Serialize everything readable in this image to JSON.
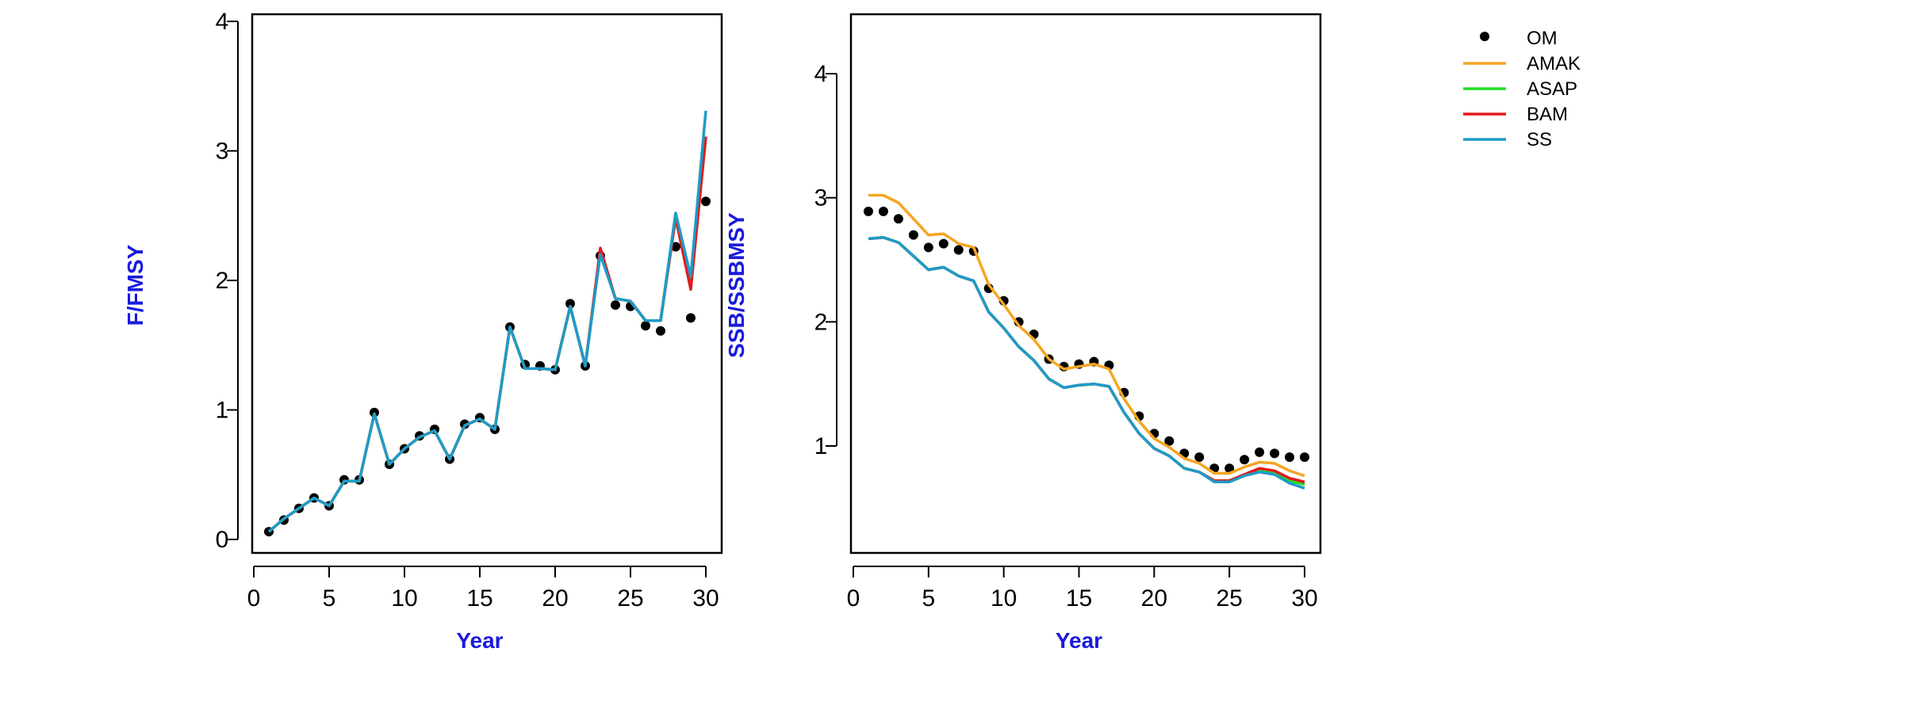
{
  "colors": {
    "OM": "#000000",
    "AMAK": "#F5A623",
    "ASAP": "#22DD22",
    "BAM": "#E31A1C",
    "SS": "#1E9BC8",
    "axis_title": "#1A1ADD"
  },
  "legend": {
    "placement": "top-right",
    "items": [
      {
        "name": "OM",
        "style": "points"
      },
      {
        "name": "AMAK",
        "style": "line"
      },
      {
        "name": "ASAP",
        "style": "line"
      },
      {
        "name": "BAM",
        "style": "line"
      },
      {
        "name": "SS",
        "style": "line"
      }
    ]
  },
  "chart_data": [
    {
      "type": "line",
      "title": "",
      "xlabel": "Year",
      "ylabel": "F/FMSY",
      "xlim": [
        0,
        30
      ],
      "ylim": [
        0,
        4
      ],
      "xticks": [
        0,
        5,
        10,
        15,
        20,
        25,
        30
      ],
      "yticks": [
        0,
        1,
        2,
        3,
        4
      ],
      "grid": false,
      "x": [
        1,
        2,
        3,
        4,
        5,
        6,
        7,
        8,
        9,
        10,
        11,
        12,
        13,
        14,
        15,
        16,
        17,
        18,
        19,
        20,
        21,
        22,
        23,
        24,
        25,
        26,
        27,
        28,
        29,
        30
      ],
      "series": [
        {
          "name": "OM",
          "style": "points",
          "values": [
            0.06,
            0.15,
            0.24,
            0.32,
            0.26,
            0.46,
            0.46,
            0.98,
            0.58,
            0.7,
            0.8,
            0.85,
            0.62,
            0.89,
            0.94,
            0.85,
            1.64,
            1.35,
            1.34,
            1.31,
            1.82,
            1.34,
            2.19,
            1.81,
            1.8,
            1.65,
            1.61,
            2.26,
            1.71,
            2.61
          ]
        },
        {
          "name": "AMAK",
          "style": "line",
          "values": [
            0.06,
            0.16,
            0.24,
            0.32,
            0.26,
            0.45,
            0.45,
            0.97,
            0.58,
            0.7,
            0.79,
            0.84,
            0.62,
            0.88,
            0.93,
            0.85,
            1.64,
            1.32,
            1.32,
            1.31,
            1.8,
            1.34,
            2.22,
            1.86,
            1.84,
            1.69,
            1.69,
            2.52,
            1.97,
            3.11
          ]
        },
        {
          "name": "ASAP",
          "style": "line",
          "values": [
            0.06,
            0.16,
            0.24,
            0.32,
            0.26,
            0.45,
            0.45,
            0.97,
            0.58,
            0.7,
            0.79,
            0.84,
            0.62,
            0.88,
            0.93,
            0.85,
            1.64,
            1.32,
            1.32,
            1.31,
            1.8,
            1.34,
            2.22,
            1.86,
            1.84,
            1.69,
            1.69,
            2.52,
            1.97,
            3.11
          ]
        },
        {
          "name": "BAM",
          "style": "line",
          "values": [
            0.06,
            0.16,
            0.24,
            0.32,
            0.26,
            0.45,
            0.45,
            0.97,
            0.58,
            0.7,
            0.79,
            0.84,
            0.62,
            0.88,
            0.93,
            0.85,
            1.64,
            1.32,
            1.32,
            1.31,
            1.8,
            1.34,
            2.25,
            1.86,
            1.84,
            1.69,
            1.69,
            2.48,
            1.93,
            3.11
          ]
        },
        {
          "name": "SS",
          "style": "line",
          "values": [
            0.06,
            0.16,
            0.24,
            0.32,
            0.26,
            0.45,
            0.45,
            0.97,
            0.58,
            0.7,
            0.79,
            0.84,
            0.62,
            0.88,
            0.93,
            0.85,
            1.64,
            1.32,
            1.32,
            1.31,
            1.8,
            1.34,
            2.2,
            1.86,
            1.84,
            1.69,
            1.69,
            2.52,
            2.03,
            3.31
          ]
        }
      ]
    },
    {
      "type": "line",
      "title": "",
      "xlabel": "Year",
      "ylabel": "SSB/SSBMSY",
      "xlim": [
        0,
        30
      ],
      "ylim": [
        0.1,
        4.5
      ],
      "xticks": [
        0,
        5,
        10,
        15,
        20,
        25,
        30
      ],
      "yticks": [
        1,
        2,
        3,
        4
      ],
      "grid": false,
      "x": [
        1,
        2,
        3,
        4,
        5,
        6,
        7,
        8,
        9,
        10,
        11,
        12,
        13,
        14,
        15,
        16,
        17,
        18,
        19,
        20,
        21,
        22,
        23,
        24,
        25,
        26,
        27,
        28,
        29,
        30
      ],
      "series": [
        {
          "name": "OM",
          "style": "points",
          "values": [
            2.89,
            2.89,
            2.83,
            2.7,
            2.6,
            2.63,
            2.58,
            2.57,
            2.27,
            2.17,
            2.0,
            1.9,
            1.7,
            1.64,
            1.66,
            1.68,
            1.65,
            1.43,
            1.24,
            1.1,
            1.04,
            0.94,
            0.91,
            0.82,
            0.82,
            0.89,
            0.95,
            0.94,
            0.91,
            0.91
          ]
        },
        {
          "name": "AMAK",
          "style": "line",
          "values": [
            3.02,
            3.02,
            2.96,
            2.83,
            2.7,
            2.71,
            2.63,
            2.6,
            2.3,
            2.14,
            1.97,
            1.86,
            1.7,
            1.62,
            1.64,
            1.66,
            1.62,
            1.38,
            1.2,
            1.06,
            0.99,
            0.9,
            0.86,
            0.78,
            0.78,
            0.83,
            0.87,
            0.86,
            0.8,
            0.76
          ]
        },
        {
          "name": "ASAP",
          "style": "line",
          "values": [
            2.67,
            2.68,
            2.64,
            2.53,
            2.42,
            2.44,
            2.37,
            2.33,
            2.08,
            1.95,
            1.8,
            1.69,
            1.54,
            1.47,
            1.49,
            1.5,
            1.48,
            1.27,
            1.1,
            0.98,
            0.92,
            0.82,
            0.79,
            0.72,
            0.72,
            0.77,
            0.8,
            0.78,
            0.72,
            0.69
          ]
        },
        {
          "name": "BAM",
          "style": "line",
          "values": [
            2.67,
            2.68,
            2.64,
            2.53,
            2.42,
            2.44,
            2.37,
            2.33,
            2.08,
            1.95,
            1.8,
            1.69,
            1.54,
            1.47,
            1.49,
            1.5,
            1.48,
            1.27,
            1.1,
            0.98,
            0.92,
            0.82,
            0.79,
            0.72,
            0.72,
            0.77,
            0.82,
            0.8,
            0.74,
            0.71
          ]
        },
        {
          "name": "SS",
          "style": "line",
          "values": [
            2.67,
            2.68,
            2.64,
            2.53,
            2.42,
            2.44,
            2.37,
            2.33,
            2.08,
            1.95,
            1.8,
            1.69,
            1.54,
            1.47,
            1.49,
            1.5,
            1.48,
            1.27,
            1.1,
            0.98,
            0.92,
            0.82,
            0.79,
            0.71,
            0.71,
            0.76,
            0.79,
            0.77,
            0.7,
            0.66
          ]
        }
      ]
    }
  ]
}
